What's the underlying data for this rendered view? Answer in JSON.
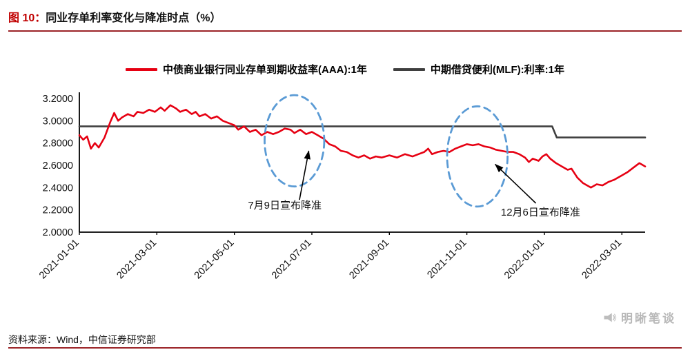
{
  "header": {
    "figure_label": "图 10：",
    "title": "同业存单利率变化与降准时点（%）"
  },
  "footer": {
    "source": "资料来源：Wind，中信证券研究部",
    "watermark": "明晰笔谈"
  },
  "colors": {
    "accent_red": "#c00000",
    "rule_red": "#9b2226",
    "ellipse_blue": "#5b9bd5",
    "axis_black": "#000000"
  },
  "chart_data": {
    "type": "line",
    "title": "同业存单利率变化与降准时点（%）",
    "x_unit": "months since 2021-01-01",
    "x_range": [
      0,
      14.6
    ],
    "ylim": [
      2.0,
      3.2
    ],
    "grid": false,
    "legend_position": "top-center",
    "y_ticks": [
      {
        "v": 2.0,
        "label": "2.0000"
      },
      {
        "v": 2.2,
        "label": "2.2000"
      },
      {
        "v": 2.4,
        "label": "2.4000"
      },
      {
        "v": 2.6,
        "label": "2.6000"
      },
      {
        "v": 2.8,
        "label": "2.8000"
      },
      {
        "v": 3.0,
        "label": "3.0000"
      },
      {
        "v": 3.2,
        "label": "3.2000"
      }
    ],
    "x_ticks": [
      {
        "m": 0,
        "label": "2021-01-01"
      },
      {
        "m": 2,
        "label": "2021-03-01"
      },
      {
        "m": 4,
        "label": "2021-05-01"
      },
      {
        "m": 6,
        "label": "2021-07-01"
      },
      {
        "m": 8,
        "label": "2021-09-01"
      },
      {
        "m": 10,
        "label": "2021-11-01"
      },
      {
        "m": 12,
        "label": "2022-01-01"
      },
      {
        "m": 14,
        "label": "2022-03-01"
      }
    ],
    "series": [
      {
        "name": "中债商业银行同业存单到期收益率(AAA):1年",
        "color": "#e60012",
        "width": 2.6,
        "points": [
          [
            0,
            2.87
          ],
          [
            0.1,
            2.83
          ],
          [
            0.2,
            2.86
          ],
          [
            0.3,
            2.75
          ],
          [
            0.4,
            2.8
          ],
          [
            0.5,
            2.76
          ],
          [
            0.65,
            2.85
          ],
          [
            0.8,
            2.99
          ],
          [
            0.9,
            3.07
          ],
          [
            1.0,
            3.0
          ],
          [
            1.1,
            3.03
          ],
          [
            1.25,
            3.06
          ],
          [
            1.4,
            3.04
          ],
          [
            1.5,
            3.08
          ],
          [
            1.65,
            3.07
          ],
          [
            1.8,
            3.1
          ],
          [
            1.95,
            3.08
          ],
          [
            2.1,
            3.12
          ],
          [
            2.2,
            3.09
          ],
          [
            2.35,
            3.14
          ],
          [
            2.5,
            3.11
          ],
          [
            2.6,
            3.08
          ],
          [
            2.75,
            3.1
          ],
          [
            2.9,
            3.06
          ],
          [
            3.0,
            3.08
          ],
          [
            3.1,
            3.04
          ],
          [
            3.25,
            3.06
          ],
          [
            3.4,
            3.02
          ],
          [
            3.55,
            3.04
          ],
          [
            3.7,
            3.0
          ],
          [
            3.85,
            2.98
          ],
          [
            4.0,
            2.96
          ],
          [
            4.1,
            2.92
          ],
          [
            4.25,
            2.95
          ],
          [
            4.4,
            2.9
          ],
          [
            4.55,
            2.92
          ],
          [
            4.7,
            2.87
          ],
          [
            4.85,
            2.9
          ],
          [
            5.0,
            2.88
          ],
          [
            5.15,
            2.9
          ],
          [
            5.3,
            2.93
          ],
          [
            5.45,
            2.92
          ],
          [
            5.55,
            2.89
          ],
          [
            5.7,
            2.92
          ],
          [
            5.85,
            2.88
          ],
          [
            6.0,
            2.9
          ],
          [
            6.15,
            2.87
          ],
          [
            6.3,
            2.84
          ],
          [
            6.45,
            2.79
          ],
          [
            6.6,
            2.77
          ],
          [
            6.75,
            2.73
          ],
          [
            6.9,
            2.72
          ],
          [
            7.05,
            2.69
          ],
          [
            7.2,
            2.67
          ],
          [
            7.35,
            2.69
          ],
          [
            7.5,
            2.66
          ],
          [
            7.65,
            2.68
          ],
          [
            7.8,
            2.67
          ],
          [
            8.0,
            2.69
          ],
          [
            8.2,
            2.67
          ],
          [
            8.4,
            2.7
          ],
          [
            8.6,
            2.68
          ],
          [
            8.75,
            2.7
          ],
          [
            8.9,
            2.72
          ],
          [
            9.0,
            2.75
          ],
          [
            9.1,
            2.7
          ],
          [
            9.25,
            2.72
          ],
          [
            9.4,
            2.73
          ],
          [
            9.55,
            2.72
          ],
          [
            9.7,
            2.75
          ],
          [
            9.85,
            2.77
          ],
          [
            10.0,
            2.79
          ],
          [
            10.15,
            2.78
          ],
          [
            10.3,
            2.79
          ],
          [
            10.45,
            2.77
          ],
          [
            10.6,
            2.76
          ],
          [
            10.75,
            2.74
          ],
          [
            10.9,
            2.73
          ],
          [
            11.05,
            2.72
          ],
          [
            11.2,
            2.72
          ],
          [
            11.35,
            2.7
          ],
          [
            11.5,
            2.67
          ],
          [
            11.6,
            2.63
          ],
          [
            11.7,
            2.66
          ],
          [
            11.85,
            2.64
          ],
          [
            11.95,
            2.68
          ],
          [
            12.05,
            2.7
          ],
          [
            12.15,
            2.66
          ],
          [
            12.3,
            2.62
          ],
          [
            12.45,
            2.59
          ],
          [
            12.6,
            2.56
          ],
          [
            12.7,
            2.57
          ],
          [
            12.85,
            2.49
          ],
          [
            13.0,
            2.44
          ],
          [
            13.1,
            2.42
          ],
          [
            13.2,
            2.4
          ],
          [
            13.35,
            2.43
          ],
          [
            13.5,
            2.42
          ],
          [
            13.65,
            2.45
          ],
          [
            13.8,
            2.47
          ],
          [
            14.0,
            2.51
          ],
          [
            14.15,
            2.54
          ],
          [
            14.3,
            2.58
          ],
          [
            14.45,
            2.62
          ],
          [
            14.6,
            2.59
          ]
        ]
      },
      {
        "name": "中期借贷便利(MLF):利率:1年",
        "color": "#3f3f3f",
        "width": 2.6,
        "points": [
          [
            0,
            2.95
          ],
          [
            12.2,
            2.95
          ],
          [
            12.32,
            2.85
          ],
          [
            14.6,
            2.85
          ]
        ]
      }
    ],
    "annotations": {
      "ellipses": [
        {
          "cx": 5.55,
          "cy": 2.82,
          "rx": 0.77,
          "ry": 0.41,
          "color": "#5b9bd5"
        },
        {
          "cx": 10.27,
          "cy": 2.68,
          "rx": 0.78,
          "ry": 0.45,
          "color": "#5b9bd5"
        }
      ],
      "arrows": [
        {
          "from": [
            5.68,
            2.29
          ],
          "to": [
            5.92,
            2.73
          ]
        },
        {
          "from": [
            11.78,
            2.26
          ],
          "to": [
            10.73,
            2.61
          ]
        }
      ],
      "labels": [
        {
          "text": "7月9日宣布降准",
          "x": 5.3,
          "y": 2.21
        },
        {
          "text": "12月6日宣布降准",
          "x": 11.9,
          "y": 2.15
        }
      ]
    }
  }
}
